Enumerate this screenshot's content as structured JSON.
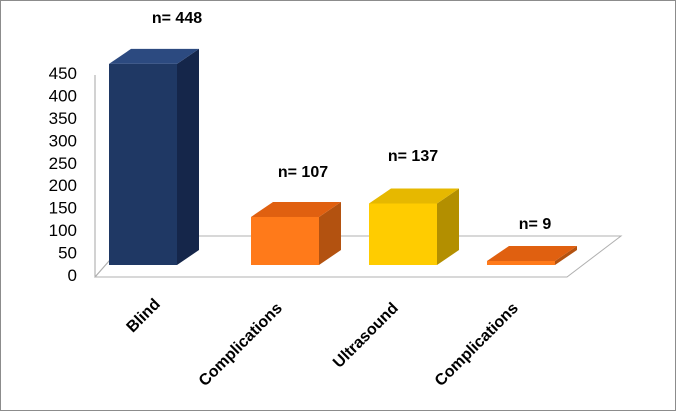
{
  "chart_data": {
    "type": "bar",
    "categories": [
      "Blind",
      "Complications",
      "Ultrasound",
      "Complications"
    ],
    "values": [
      448,
      107,
      137,
      9
    ],
    "data_labels": [
      "n= 448",
      "n= 107",
      "n= 137",
      "n= 9"
    ],
    "y_ticks": [
      "0",
      "50",
      "100",
      "150",
      "200",
      "250",
      "300",
      "350",
      "400",
      "450"
    ],
    "ylim": [
      0,
      450
    ],
    "grid": false,
    "legend": false,
    "three_d": true,
    "colors": {
      "front": [
        "#1f3864",
        "#ff7a1a",
        "#ffcc00",
        "#ff7a1a"
      ],
      "top": [
        "#2c4a80",
        "#e06010",
        "#e6b800",
        "#e06010"
      ],
      "side": [
        "#15264a",
        "#b35210",
        "#b38f00",
        "#b35210"
      ],
      "floor_stroke": "#b0b0b0",
      "axis": "#a6a6a6"
    }
  }
}
